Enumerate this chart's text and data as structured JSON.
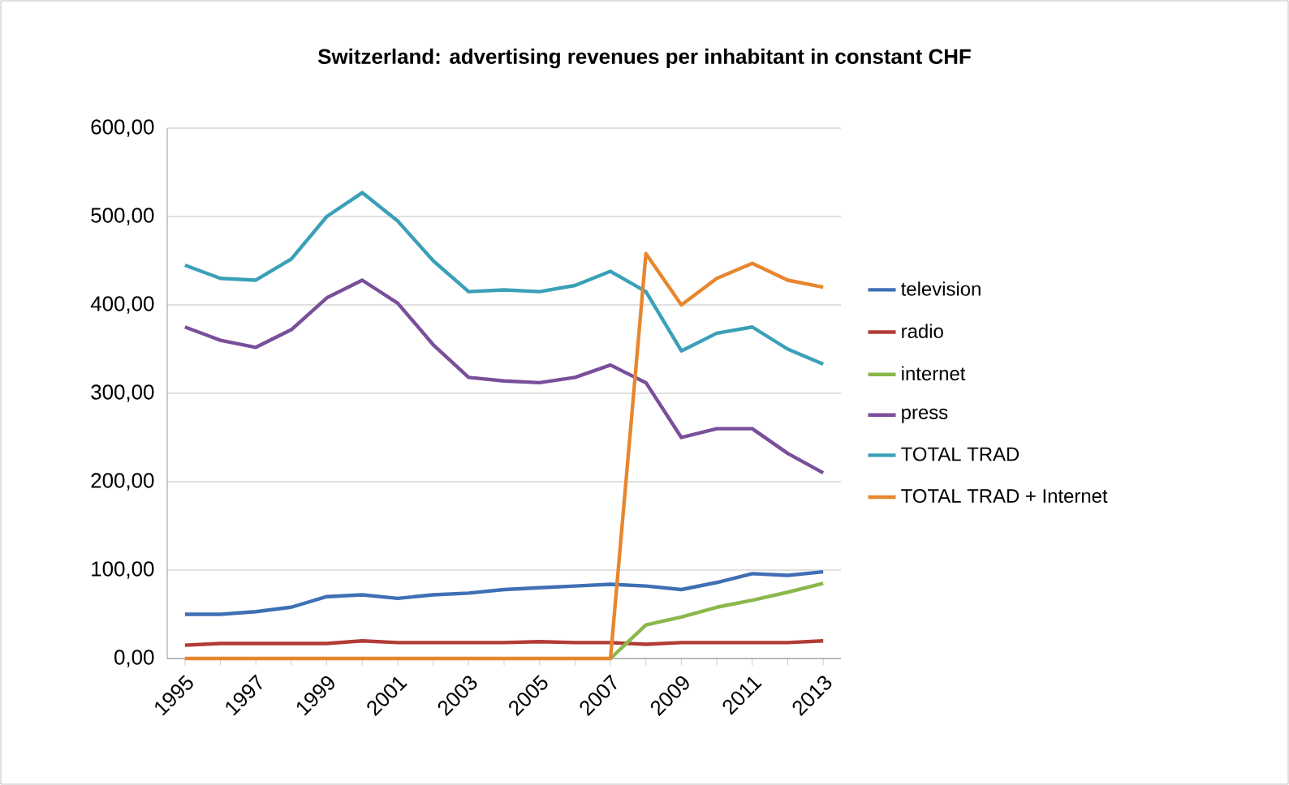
{
  "chart_data": {
    "type": "line",
    "title": "Switzerland: advertising revenues per inhabitant in constant CHF",
    "categories": [
      "1995",
      null,
      "1997",
      null,
      "1999",
      null,
      "2001",
      null,
      "2003",
      null,
      "2005",
      null,
      "2007",
      null,
      "2009",
      null,
      "2011",
      null,
      "2013"
    ],
    "series": [
      {
        "name": "television",
        "color": "#3f6fb5",
        "values": [
          50,
          50,
          53,
          58,
          70,
          72,
          68,
          72,
          74,
          78,
          80,
          82,
          84,
          82,
          78,
          86,
          96,
          94,
          98
        ]
      },
      {
        "name": "radio",
        "color": "#b23b36",
        "values": [
          15,
          17,
          17,
          17,
          17,
          20,
          18,
          18,
          18,
          18,
          19,
          18,
          18,
          16,
          18,
          18,
          18,
          18,
          20
        ]
      },
      {
        "name": "internet",
        "color": "#8bb84a",
        "values": [
          null,
          null,
          null,
          null,
          null,
          null,
          null,
          null,
          null,
          null,
          null,
          null,
          0,
          38,
          47,
          58,
          66,
          75,
          85
        ]
      },
      {
        "name": "press",
        "color": "#7a4f9a",
        "values": [
          375,
          360,
          352,
          372,
          408,
          428,
          402,
          355,
          318,
          314,
          312,
          318,
          332,
          312,
          250,
          260,
          260,
          232,
          210
        ]
      },
      {
        "name": "TOTAL TRAD",
        "color": "#3aa0b8",
        "values": [
          445,
          430,
          428,
          452,
          500,
          527,
          495,
          450,
          415,
          417,
          415,
          422,
          438,
          415,
          348,
          368,
          375,
          350,
          333
        ]
      },
      {
        "name": "TOTAL TRAD + Internet",
        "color": "#e8862f",
        "values": [
          0,
          0,
          0,
          0,
          0,
          0,
          0,
          0,
          0,
          0,
          0,
          0,
          0,
          458,
          400,
          430,
          447,
          428,
          420
        ]
      }
    ],
    "ylim": [
      0,
      600
    ],
    "yticks": [
      {
        "value": 0,
        "label": "0,00"
      },
      {
        "value": 100,
        "label": "100,00"
      },
      {
        "value": 200,
        "label": "200,00"
      },
      {
        "value": 300,
        "label": "300,00"
      },
      {
        "value": 400,
        "label": "400,00"
      },
      {
        "value": 500,
        "label": "500,00"
      },
      {
        "value": 600,
        "label": "600,00"
      }
    ],
    "grid": "y",
    "legend": "right",
    "marker": "none",
    "line_style": "solid"
  }
}
